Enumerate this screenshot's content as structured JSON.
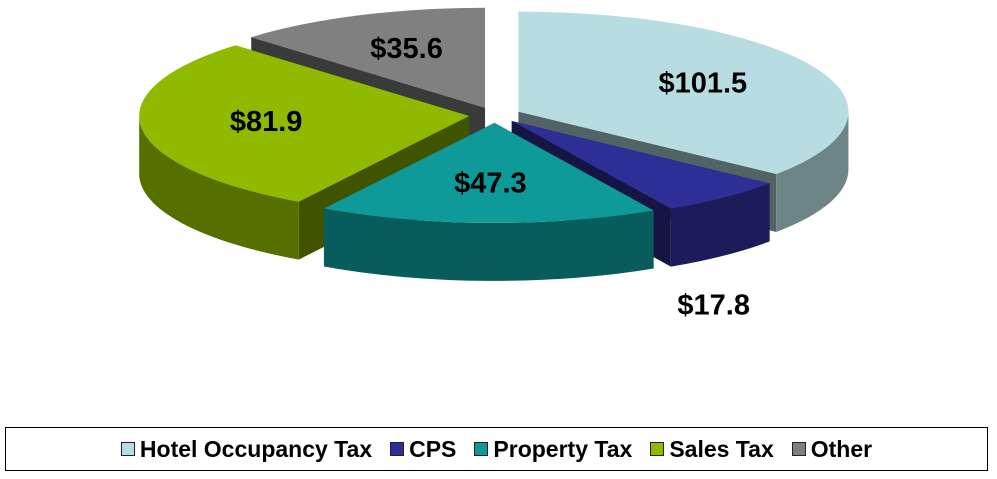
{
  "chart_data": {
    "type": "pie",
    "categories": [
      "Hotel Occupancy Tax",
      "CPS",
      "Property Tax",
      "Sales Tax",
      "Other"
    ],
    "values": [
      101.5,
      17.8,
      47.3,
      81.9,
      35.6
    ],
    "value_labels": [
      "$101.5",
      "$17.8",
      "$47.3",
      "$81.9",
      "$35.6"
    ],
    "colors": [
      "#b7dde3",
      "#2e2e96",
      "#0f9a9a",
      "#8fba00",
      "#808080"
    ],
    "legend": "bottom"
  }
}
